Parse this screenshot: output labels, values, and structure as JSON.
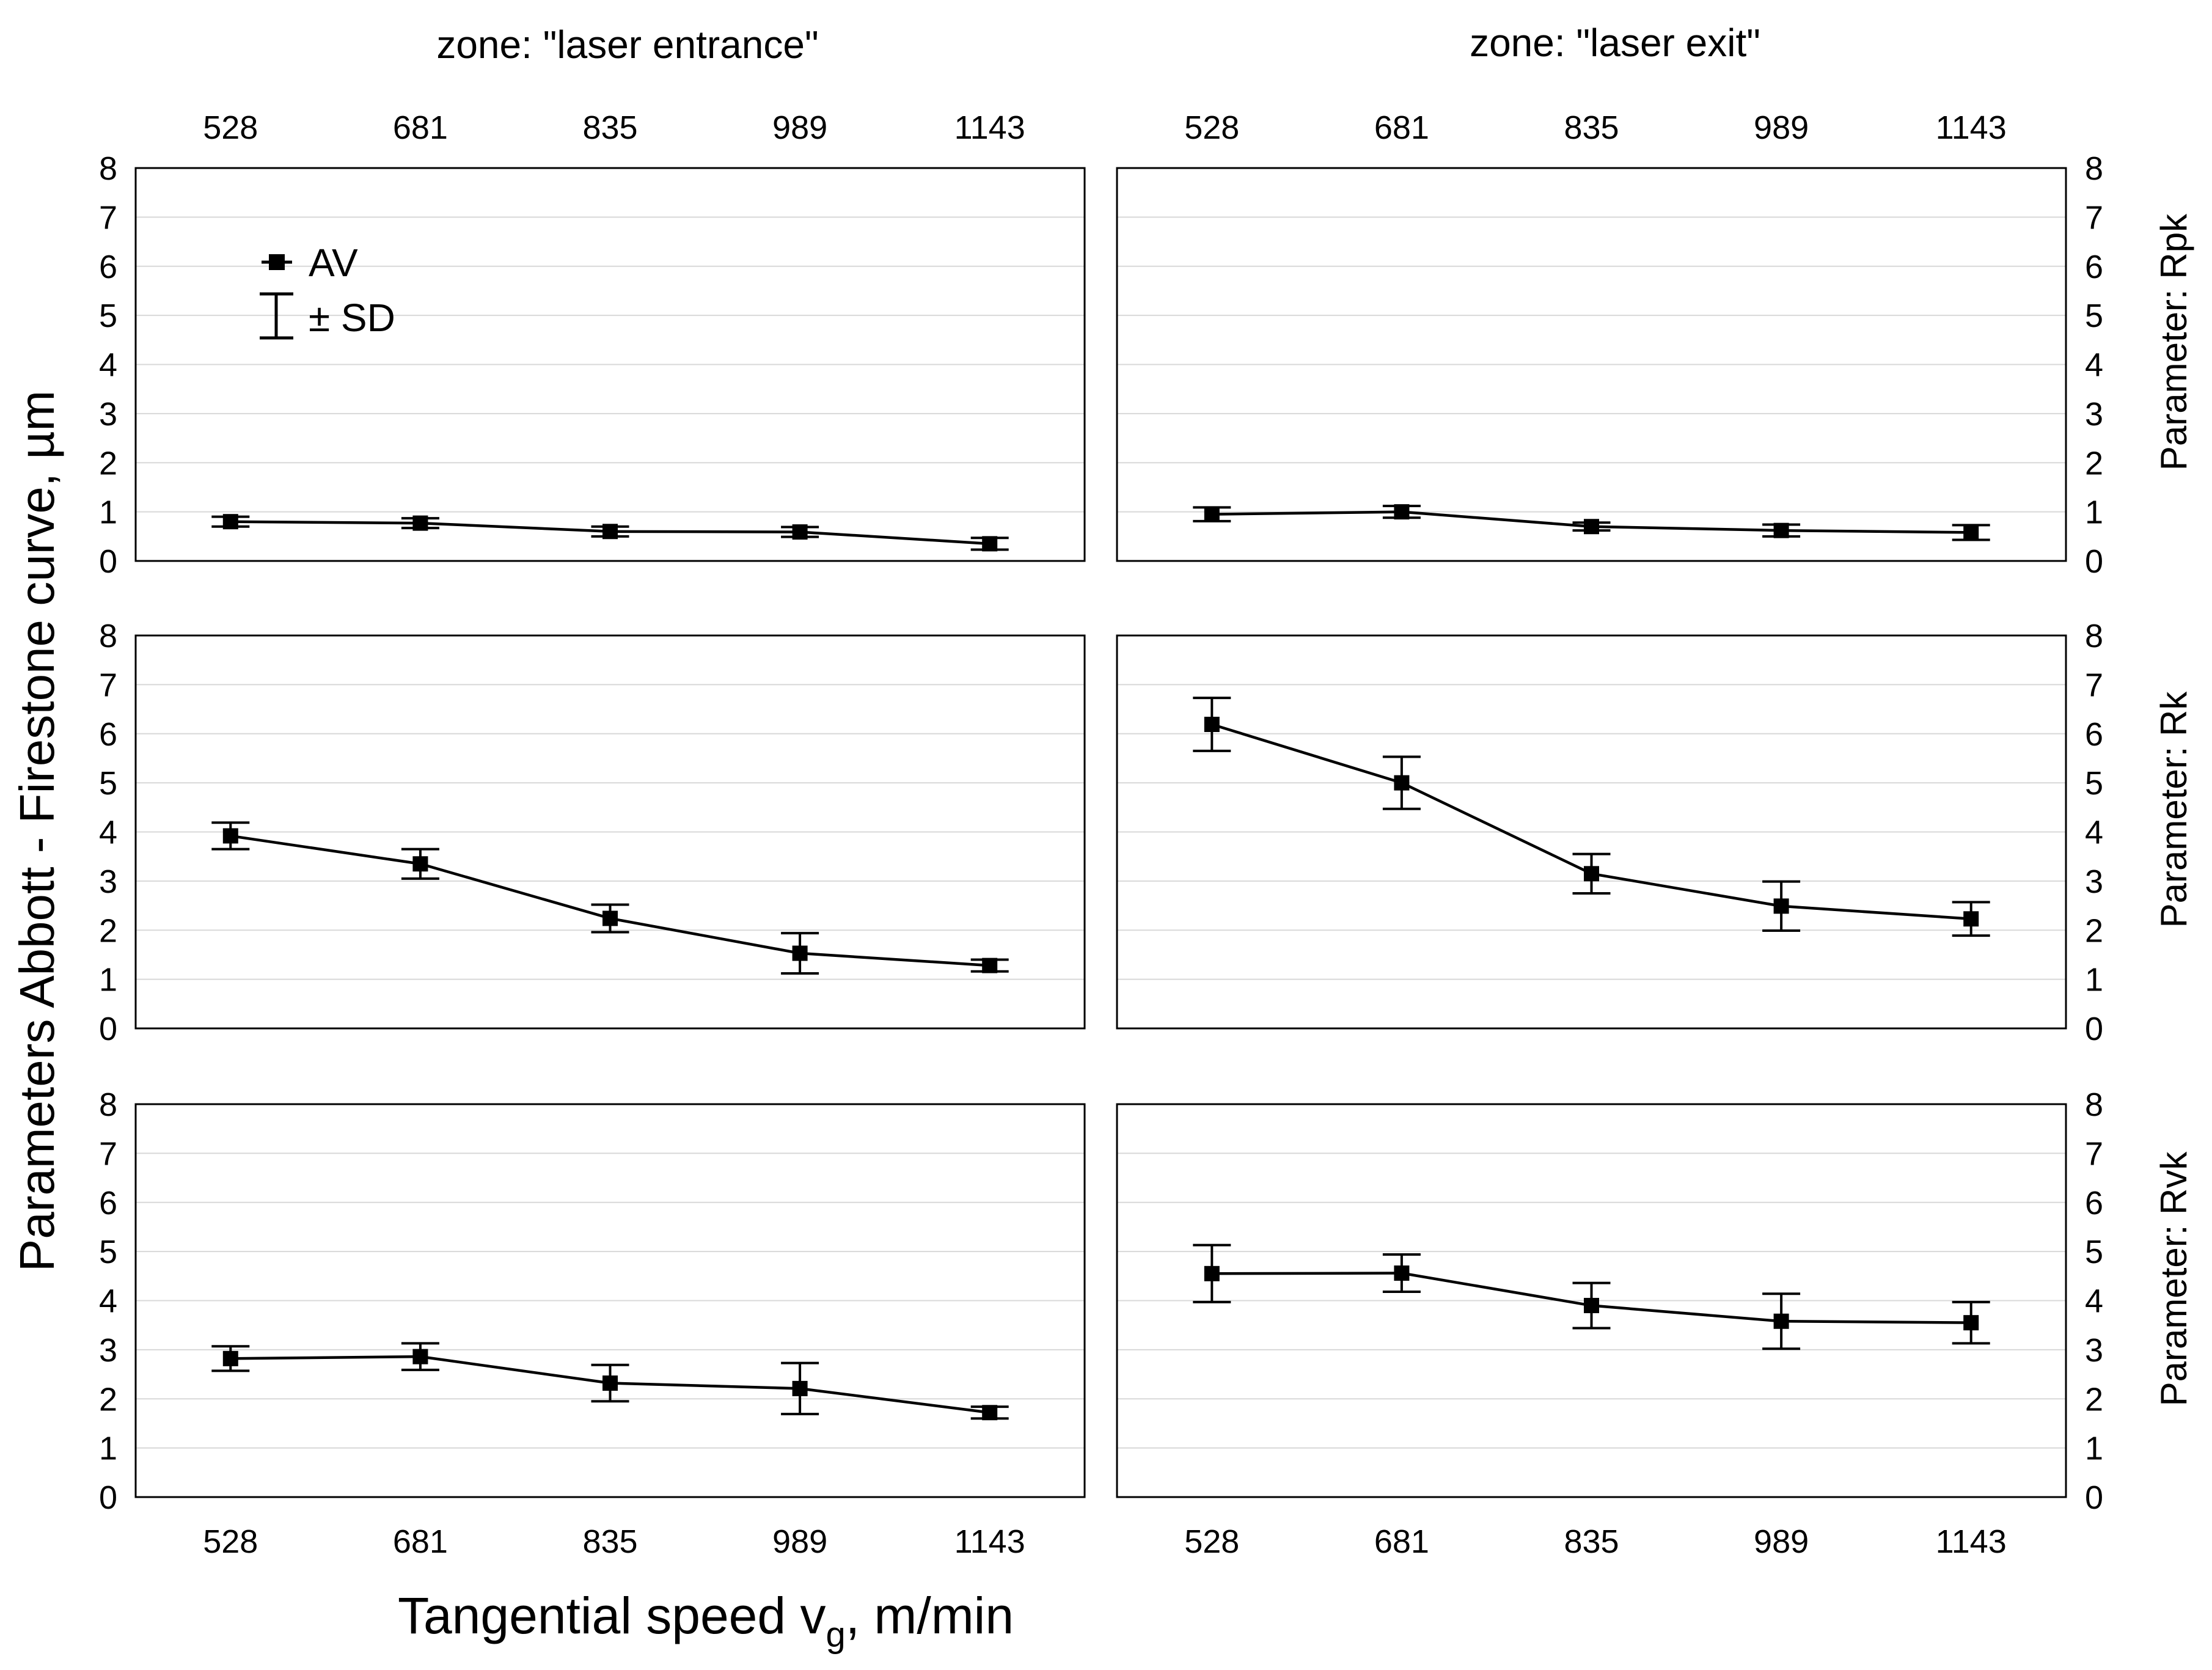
{
  "chart_data": {
    "type": "line",
    "title": "",
    "xlabel_parts": {
      "main": "Tangential speed v",
      "sub": "g",
      "suffix": ", m/min"
    },
    "ylabel": "Parameters Abbott - Firestone curve, µm",
    "categories": [
      "528",
      "681",
      "835",
      "989",
      "1143"
    ],
    "y_ticks": [
      "0",
      "1",
      "2",
      "3",
      "4",
      "5",
      "6",
      "7",
      "8"
    ],
    "ylim": [
      0,
      8
    ],
    "grid": true,
    "columns": [
      {
        "zone_label": "zone: \"laser entrance\""
      },
      {
        "zone_label": "zone: \"laser exit\""
      }
    ],
    "rows": [
      {
        "parameter_label": "Parameter: Rpk"
      },
      {
        "parameter_label": "Parameter: Rk"
      },
      {
        "parameter_label": "Parameter: Rvk"
      }
    ],
    "legend": {
      "position": "top-left",
      "mean_label": "AV",
      "error_label": "± SD"
    },
    "panels": [
      {
        "row": 0,
        "col": 0,
        "parameter": "Rpk",
        "zone": "laser entrance",
        "values": [
          0.8,
          0.77,
          0.6,
          0.59,
          0.35
        ],
        "sd": [
          0.1,
          0.1,
          0.1,
          0.1,
          0.12
        ]
      },
      {
        "row": 0,
        "col": 1,
        "parameter": "Rpk",
        "zone": "laser exit",
        "values": [
          0.95,
          1.0,
          0.7,
          0.62,
          0.58
        ],
        "sd": [
          0.14,
          0.12,
          0.08,
          0.12,
          0.15
        ]
      },
      {
        "row": 1,
        "col": 0,
        "parameter": "Rk",
        "zone": "laser entrance",
        "values": [
          3.92,
          3.35,
          2.24,
          1.53,
          1.28
        ],
        "sd": [
          0.27,
          0.3,
          0.28,
          0.41,
          0.12
        ]
      },
      {
        "row": 1,
        "col": 1,
        "parameter": "Rk",
        "zone": "laser exit",
        "values": [
          6.19,
          5.0,
          3.15,
          2.49,
          2.23
        ],
        "sd": [
          0.54,
          0.53,
          0.4,
          0.5,
          0.34
        ]
      },
      {
        "row": 2,
        "col": 0,
        "parameter": "Rvk",
        "zone": "laser entrance",
        "values": [
          2.82,
          2.86,
          2.32,
          2.21,
          1.72
        ],
        "sd": [
          0.25,
          0.27,
          0.37,
          0.52,
          0.12
        ]
      },
      {
        "row": 2,
        "col": 1,
        "parameter": "Rvk",
        "zone": "laser exit",
        "values": [
          4.55,
          4.56,
          3.9,
          3.58,
          3.55
        ],
        "sd": [
          0.58,
          0.38,
          0.46,
          0.56,
          0.42
        ]
      }
    ]
  }
}
